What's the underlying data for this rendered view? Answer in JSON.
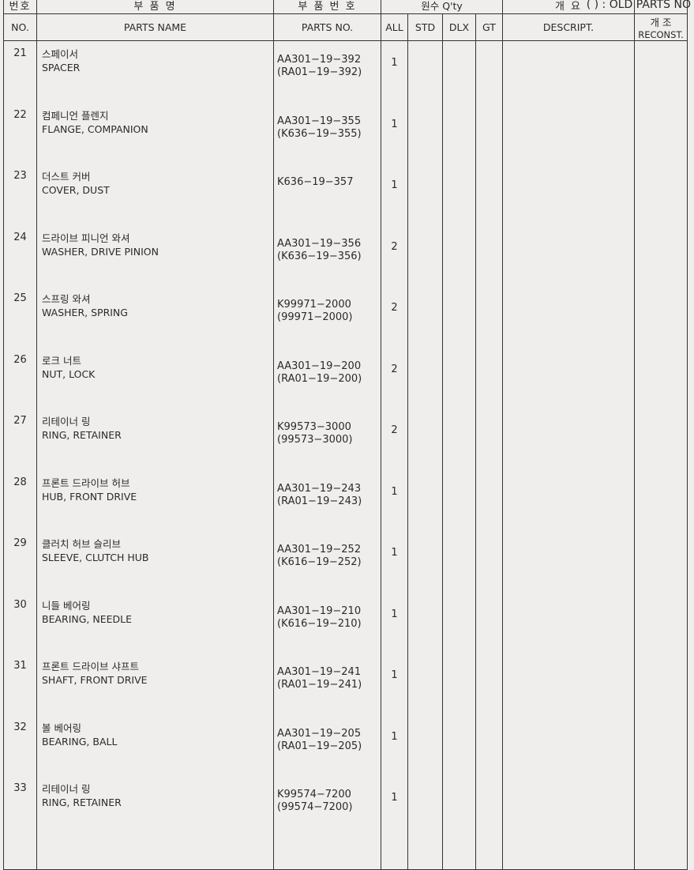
{
  "legend": "( ) : OLD PARTS NO",
  "header": {
    "no_kr": "번호",
    "no_en": "NO.",
    "name_kr": "부    품    명",
    "name_en": "PARTS NAME",
    "pn_kr": "부 품 번 호",
    "pn_en": "PARTS NO.",
    "qty_kr": "원수 Q'ty",
    "all": "ALL",
    "std": "STD",
    "dlx": "DLX",
    "gt": "GT",
    "desc_kr": "개    요",
    "desc_en": "DESCRIPT.",
    "recon_kr": "개 조",
    "recon_en": "RECONST."
  },
  "rows": [
    {
      "no": "21",
      "kr": "스페이서",
      "en": "SPACER",
      "pn": "AA301−19−392",
      "old": "(RA01−19−392)",
      "all": "1"
    },
    {
      "no": "22",
      "kr": "컴페니언 플렌지",
      "en": "FLANGE, COMPANION",
      "pn": "AA301−19−355",
      "old": "(K636−19−355)",
      "all": "1"
    },
    {
      "no": "23",
      "kr": "더스트 커버",
      "en": "COVER, DUST",
      "pn": "K636−19−357",
      "old": "",
      "all": "1"
    },
    {
      "no": "24",
      "kr": "드라이브 피니언 와셔",
      "en": "WASHER, DRIVE PINION",
      "pn": "AA301−19−356",
      "old": "(K636−19−356)",
      "all": "2"
    },
    {
      "no": "25",
      "kr": "스프링 와셔",
      "en": "WASHER, SPRING",
      "pn": "K99971−2000",
      "old": "(99971−2000)",
      "all": "2"
    },
    {
      "no": "26",
      "kr": "로크 너트",
      "en": "NUT, LOCK",
      "pn": "AA301−19−200",
      "old": "(RA01−19−200)",
      "all": "2"
    },
    {
      "no": "27",
      "kr": "리테이너 링",
      "en": "RING, RETAINER",
      "pn": "K99573−3000",
      "old": "(99573−3000)",
      "all": "2"
    },
    {
      "no": "28",
      "kr": "프론트 드라이브 허브",
      "en": "HUB, FRONT DRIVE",
      "pn": "AA301−19−243",
      "old": "(RA01−19−243)",
      "all": "1"
    },
    {
      "no": "29",
      "kr": "클러치 허브 슬리브",
      "en": "SLEEVE, CLUTCH HUB",
      "pn": "AA301−19−252",
      "old": "(K616−19−252)",
      "all": "1"
    },
    {
      "no": "30",
      "kr": "니들 베어링",
      "en": "BEARING, NEEDLE",
      "pn": "AA301−19−210",
      "old": "(K616−19−210)",
      "all": "1"
    },
    {
      "no": "31",
      "kr": "프론트 드라이브 샤프트",
      "en": "SHAFT, FRONT DRIVE",
      "pn": "AA301−19−241",
      "old": "(RA01−19−241)",
      "all": "1"
    },
    {
      "no": "32",
      "kr": "볼 베어링",
      "en": "BEARING, BALL",
      "pn": "AA301−19−205",
      "old": "(RA01−19−205)",
      "all": "1"
    },
    {
      "no": "33",
      "kr": "리테이너 링",
      "en": "RING, RETAINER",
      "pn": "K99574−7200",
      "old": "(99574−7200)",
      "all": "1"
    }
  ]
}
